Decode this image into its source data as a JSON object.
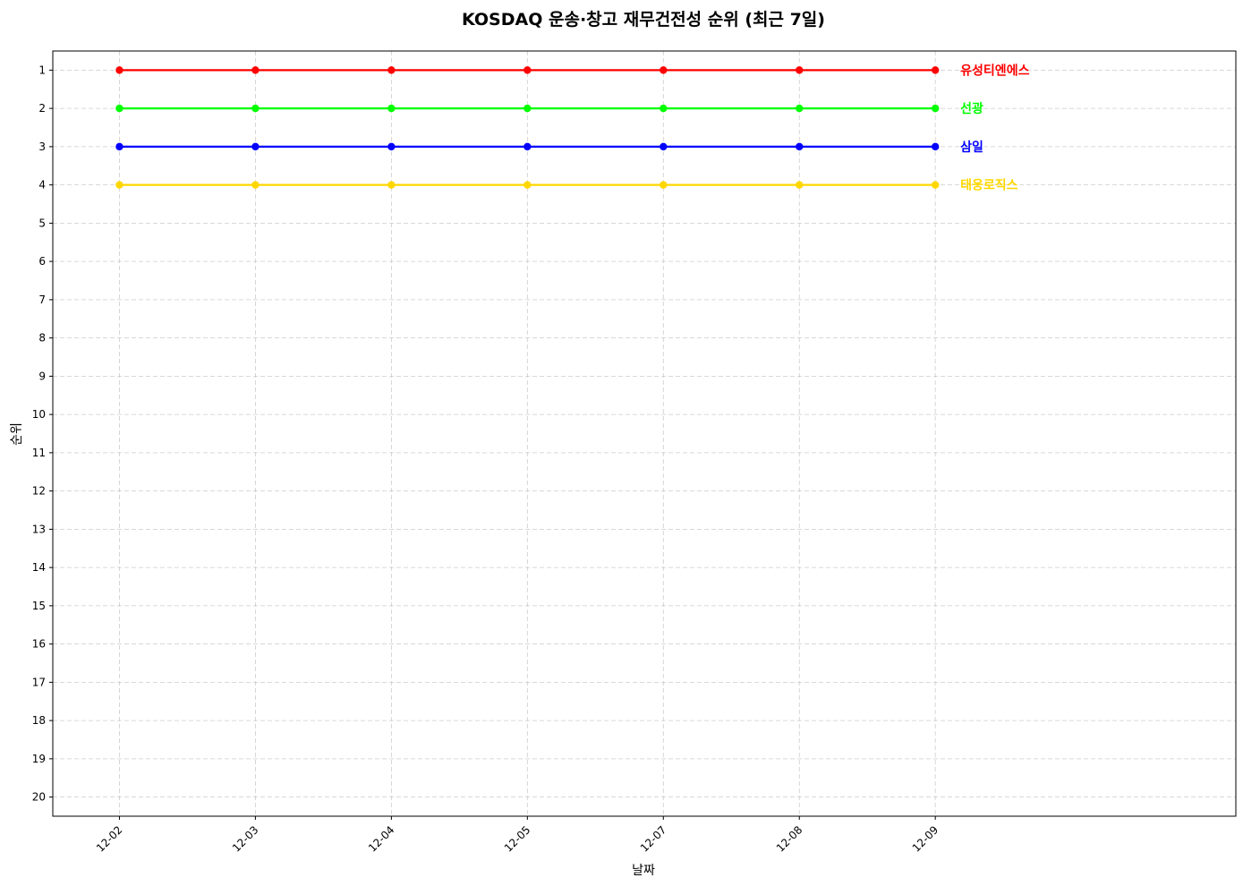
{
  "chart_data": {
    "type": "line",
    "title": "KOSDAQ 운송·창고 재무건전성 순위 (최근 7일)",
    "xlabel": "날짜",
    "ylabel": "순위",
    "categories": [
      "12-02",
      "12-03",
      "12-04",
      "12-05",
      "12-07",
      "12-08",
      "12-09"
    ],
    "y_ticks": [
      1,
      2,
      3,
      4,
      5,
      6,
      7,
      8,
      9,
      10,
      11,
      12,
      13,
      14,
      15,
      16,
      17,
      18,
      19,
      20
    ],
    "ylim": [
      20.5,
      0.5
    ],
    "y_inverted": true,
    "grid": true,
    "legend": "inline labels at right end of lines",
    "series": [
      {
        "name": "유성티엔에스",
        "color": "#ff0000",
        "values": [
          1,
          1,
          1,
          1,
          1,
          1,
          1
        ]
      },
      {
        "name": "선광",
        "color": "#00ff00",
        "values": [
          2,
          2,
          2,
          2,
          2,
          2,
          2
        ]
      },
      {
        "name": "삼일",
        "color": "#0000ff",
        "values": [
          3,
          3,
          3,
          3,
          3,
          3,
          3
        ]
      },
      {
        "name": "태웅로직스",
        "color": "#ffd700",
        "values": [
          4,
          4,
          4,
          4,
          4,
          4,
          4
        ]
      }
    ]
  }
}
